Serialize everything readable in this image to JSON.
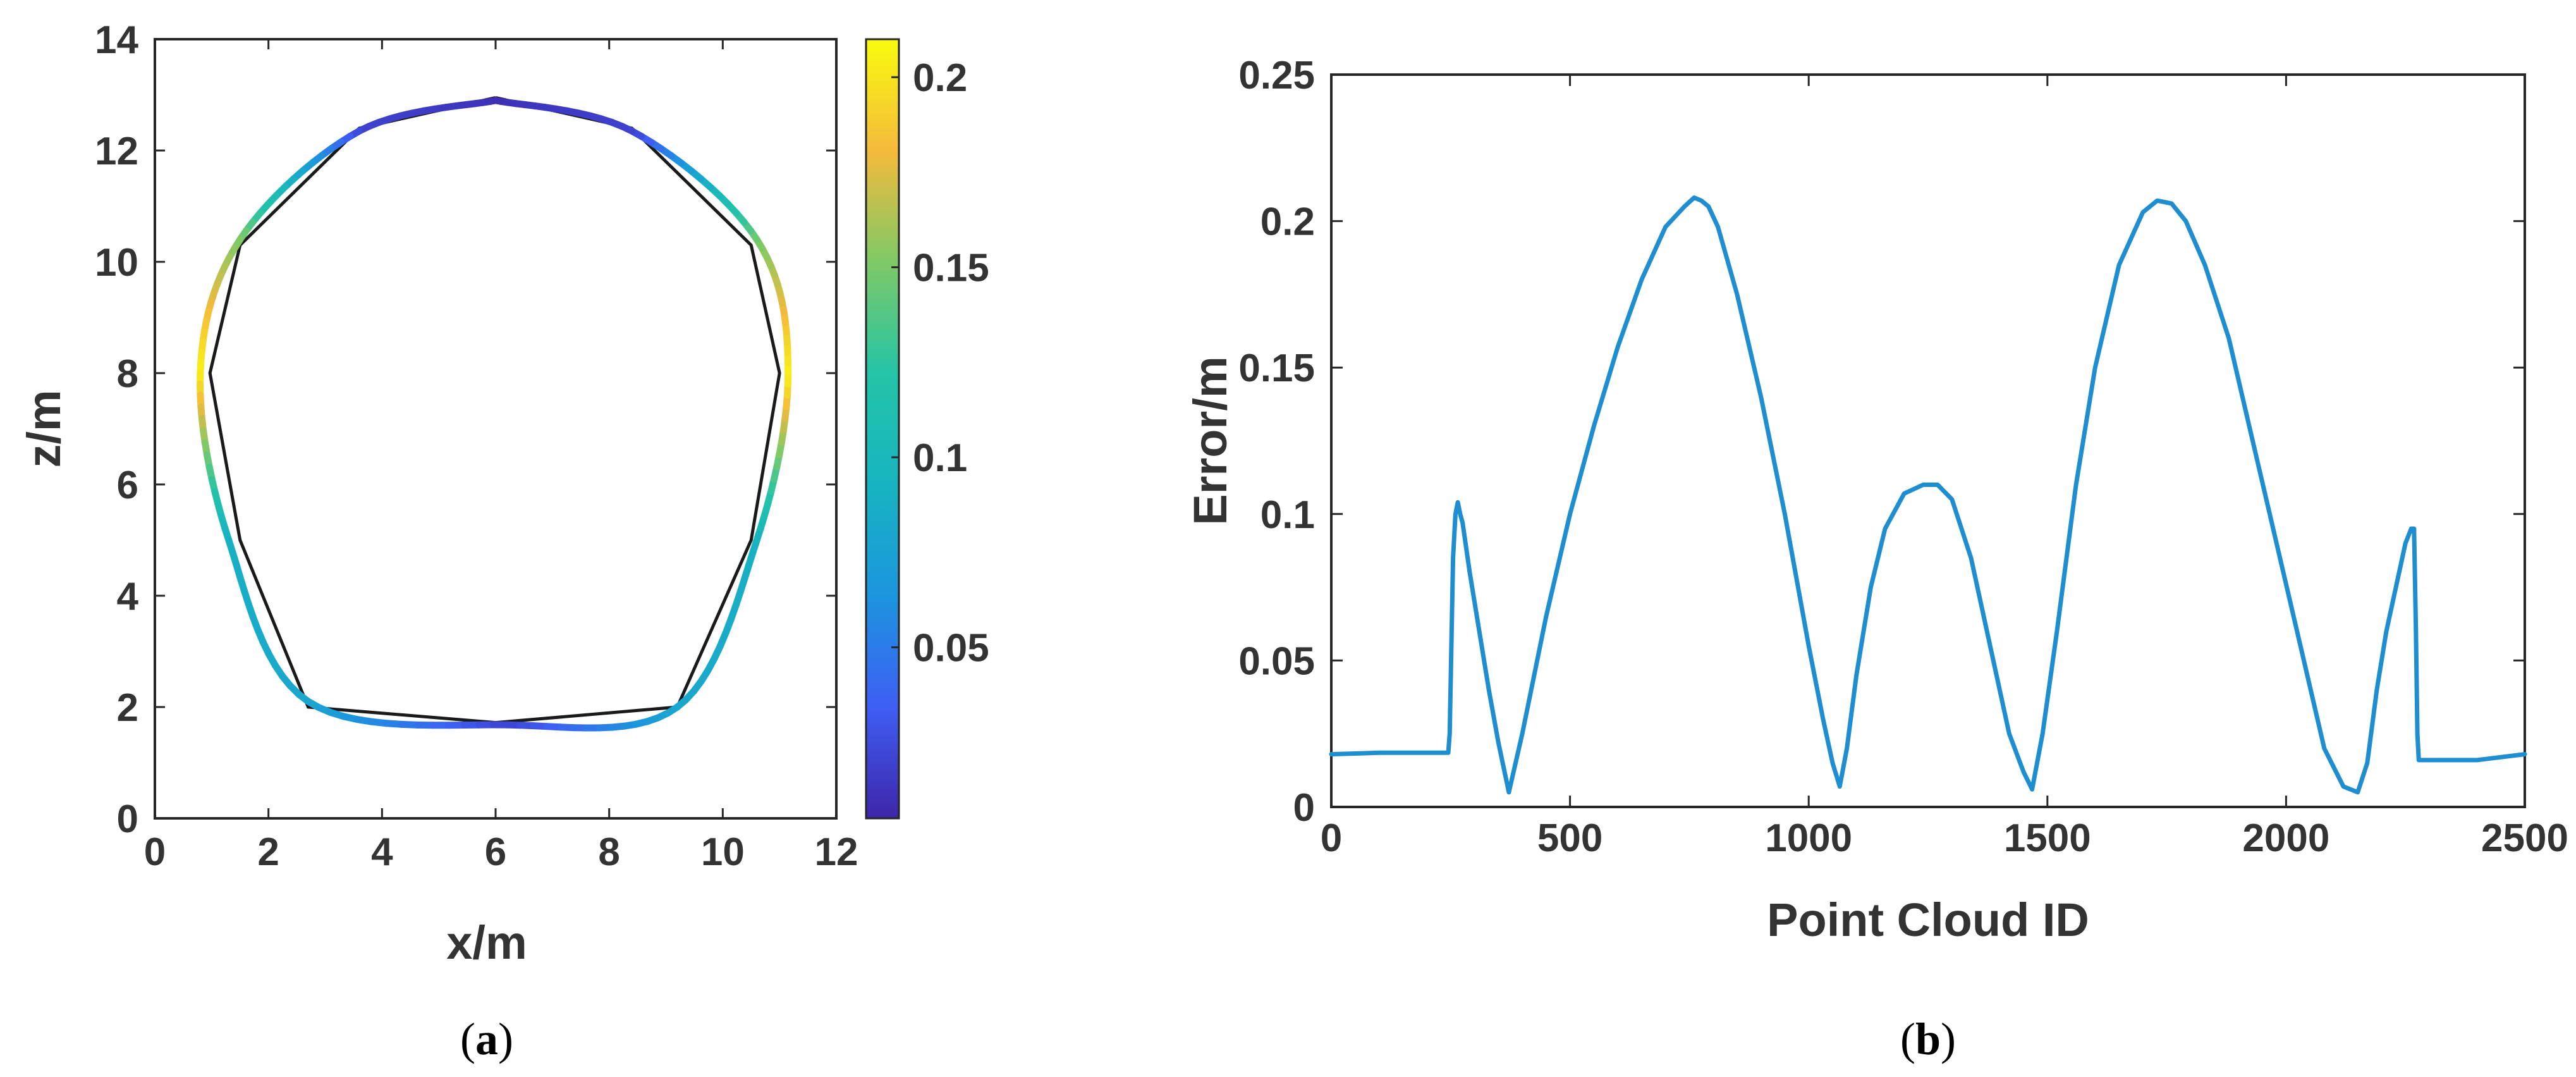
{
  "chart_data": [
    {
      "type": "scatter",
      "xlabel": "x/m",
      "ylabel": "z/m",
      "xlim": [
        0,
        12
      ],
      "ylim": [
        0,
        14
      ],
      "xticks": [
        "0",
        "2",
        "4",
        "6",
        "8",
        "10",
        "12"
      ],
      "yticks": [
        "0",
        "2",
        "4",
        "6",
        "8",
        "10",
        "12",
        "14"
      ],
      "caption": "(a)",
      "caption_letter": "a",
      "reference_outline": [
        [
          6.0,
          12.95
        ],
        [
          3.6,
          12.4
        ],
        [
          1.5,
          10.3
        ],
        [
          0.97,
          8.0
        ],
        [
          1.5,
          5.0
        ],
        [
          2.7,
          2.0
        ],
        [
          6.0,
          1.72
        ],
        [
          9.2,
          2.0
        ],
        [
          10.5,
          5.0
        ],
        [
          11.0,
          8.0
        ],
        [
          10.5,
          10.3
        ],
        [
          8.4,
          12.4
        ],
        [
          6.0,
          12.95
        ]
      ],
      "error_profile": [
        {
          "x": 6.0,
          "z": 12.9,
          "error": 0.01
        },
        {
          "x": 3.6,
          "z": 12.35,
          "error": 0.02
        },
        {
          "x": 1.5,
          "z": 10.4,
          "error": 0.15
        },
        {
          "x": 0.8,
          "z": 8.0,
          "error": 0.205
        },
        {
          "x": 1.3,
          "z": 5.0,
          "error": 0.09
        },
        {
          "x": 2.7,
          "z": 2.1,
          "error": 0.08
        },
        {
          "x": 6.2,
          "z": 1.68,
          "error": 0.02
        },
        {
          "x": 9.2,
          "z": 2.0,
          "error": 0.08
        },
        {
          "x": 10.6,
          "z": 5.0,
          "error": 0.09
        },
        {
          "x": 11.15,
          "z": 8.0,
          "error": 0.205
        },
        {
          "x": 10.6,
          "z": 10.4,
          "error": 0.15
        },
        {
          "x": 8.4,
          "z": 12.35,
          "error": 0.02
        },
        {
          "x": 6.0,
          "z": 12.9,
          "error": 0.01
        }
      ],
      "colorbar": {
        "range": [
          0.005,
          0.21
        ],
        "ticks": [
          0.05,
          0.1,
          0.15,
          0.2
        ],
        "tick_labels": [
          "0.05",
          "0.1",
          "0.15",
          "0.2"
        ],
        "colormap": "parula",
        "colors": [
          "#3e26a8",
          "#3e5ef4",
          "#1c95de",
          "#17b4c0",
          "#24c4a7",
          "#7fc966",
          "#f4ba3c",
          "#f9fb0e"
        ]
      },
      "outline_color": "#1a1a1a",
      "grid": false
    },
    {
      "type": "line",
      "xlabel": "Point Cloud ID",
      "ylabel": "Error/m",
      "xlim": [
        0,
        2500
      ],
      "ylim": [
        0,
        0.25
      ],
      "xticks": [
        "0",
        "500",
        "1000",
        "1500",
        "2000",
        "2500"
      ],
      "yticks": [
        "0",
        "0.05",
        "0.1",
        "0.15",
        "0.2",
        "0.25"
      ],
      "caption": "(b)",
      "caption_letter": "b",
      "line_color": "#1f8ed0",
      "grid": false,
      "x": [
        0,
        100,
        200,
        245,
        248,
        255,
        260,
        265,
        270,
        275,
        290,
        310,
        330,
        350,
        372,
        400,
        450,
        500,
        550,
        600,
        650,
        700,
        740,
        760,
        775,
        790,
        810,
        850,
        900,
        950,
        1000,
        1030,
        1050,
        1065,
        1080,
        1100,
        1130,
        1160,
        1200,
        1240,
        1270,
        1300,
        1340,
        1380,
        1420,
        1450,
        1468,
        1490,
        1520,
        1560,
        1600,
        1650,
        1700,
        1730,
        1760,
        1790,
        1830,
        1880,
        1930,
        1980,
        2030,
        2080,
        2120,
        2150,
        2170,
        2190,
        2210,
        2230,
        2250,
        2262,
        2268,
        2272,
        2275,
        2278,
        2400,
        2500
      ],
      "y": [
        0.018,
        0.0185,
        0.0185,
        0.0185,
        0.025,
        0.085,
        0.1,
        0.104,
        0.1,
        0.097,
        0.08,
        0.06,
        0.04,
        0.022,
        0.005,
        0.025,
        0.065,
        0.1,
        0.13,
        0.157,
        0.18,
        0.198,
        0.205,
        0.208,
        0.207,
        0.205,
        0.198,
        0.175,
        0.14,
        0.1,
        0.055,
        0.03,
        0.015,
        0.007,
        0.02,
        0.045,
        0.075,
        0.095,
        0.107,
        0.11,
        0.11,
        0.105,
        0.085,
        0.055,
        0.025,
        0.012,
        0.006,
        0.025,
        0.06,
        0.11,
        0.15,
        0.185,
        0.203,
        0.207,
        0.206,
        0.2,
        0.185,
        0.16,
        0.125,
        0.09,
        0.055,
        0.02,
        0.007,
        0.005,
        0.015,
        0.04,
        0.06,
        0.075,
        0.09,
        0.095,
        0.095,
        0.06,
        0.025,
        0.016,
        0.016,
        0.018
      ]
    }
  ]
}
